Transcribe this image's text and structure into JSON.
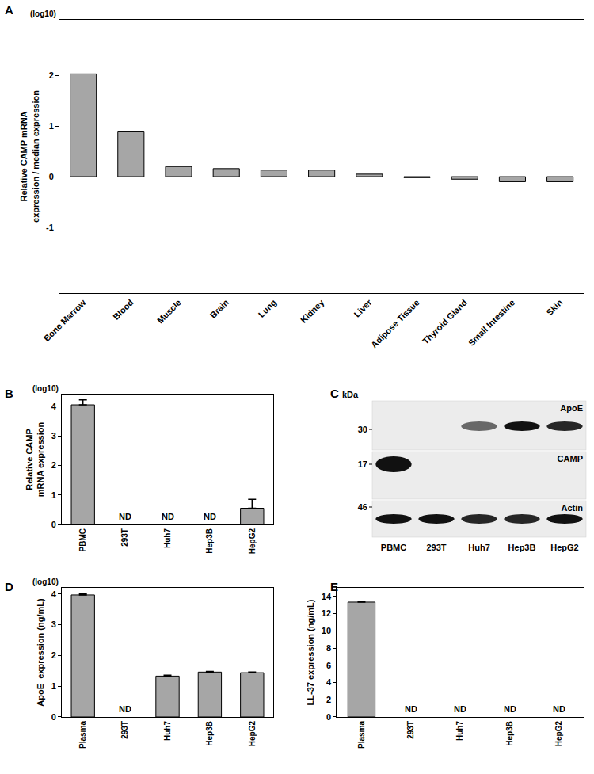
{
  "chart_data": [
    {
      "type": "bar",
      "label": "A",
      "y_label": "Relative CAMP mRNA\nexpression / median expression",
      "y_note": "(log10)",
      "categories": [
        "Bone Marrow",
        "Blood",
        "Muscle",
        "Brain",
        "Lung",
        "Kidney",
        "Liver",
        "Adipose Tissue",
        "Thyroid Gland",
        "Small Intestine",
        "Skin"
      ],
      "values": [
        2.03,
        0.9,
        0.2,
        0.16,
        0.13,
        0.13,
        0.05,
        -0.02,
        -0.05,
        -0.1,
        -0.1
      ],
      "color": "#a6a6a6",
      "ylim": [
        -2.3,
        3.1
      ],
      "yticks": [
        -1,
        0,
        1,
        2
      ],
      "grid": false
    },
    {
      "type": "bar",
      "label": "B",
      "y_label": "Relative CAMP\nmRNA expression",
      "y_note": "(log10)",
      "categories": [
        "PBMC",
        "293T",
        "Huh7",
        "Hep3B",
        "HepG2"
      ],
      "values": [
        4.05,
        null,
        null,
        null,
        0.55
      ],
      "errors": [
        0.17,
        null,
        null,
        null,
        0.3
      ],
      "annotations": [
        {
          "category": "293T",
          "text": "ND"
        },
        {
          "category": "Huh7",
          "text": "ND"
        },
        {
          "category": "Hep3B",
          "text": "ND"
        }
      ],
      "color": "#a6a6a6",
      "ylim": [
        0,
        4.4
      ],
      "yticks": [
        0,
        1,
        2,
        3,
        4
      ],
      "grid": false
    },
    {
      "type": "bar",
      "label": "D",
      "y_label": "ApoE  expression (ng/mL)",
      "y_note": "(log10)",
      "categories": [
        "Plasma",
        "293T",
        "Huh7",
        "Hep3B",
        "HepG2"
      ],
      "values": [
        3.97,
        null,
        1.33,
        1.46,
        1.44
      ],
      "errors": [
        0.04,
        null,
        0.03,
        0.02,
        0.02
      ],
      "annotations": [
        {
          "category": "293T",
          "text": "ND"
        }
      ],
      "color": "#a6a6a6",
      "ylim": [
        0,
        4.2
      ],
      "yticks": [
        0,
        1,
        2,
        3,
        4
      ],
      "grid": false
    },
    {
      "type": "bar",
      "label": "E",
      "y_label": "LL-37 expression (ng/mL)",
      "categories": [
        "Plasma",
        "293T",
        "Huh7",
        "Hep3B",
        "HepG2"
      ],
      "values": [
        13.35,
        null,
        null,
        null,
        null
      ],
      "errors": [
        0.05,
        null,
        null,
        null,
        null
      ],
      "annotations": [
        {
          "category": "293T",
          "text": "ND"
        },
        {
          "category": "Huh7",
          "text": "ND"
        },
        {
          "category": "Hep3B",
          "text": "ND"
        },
        {
          "category": "HepG2",
          "text": "ND"
        }
      ],
      "color": "#a6a6a6",
      "ylim": [
        0,
        15
      ],
      "yticks": [
        0,
        2,
        4,
        6,
        8,
        10,
        12,
        14
      ],
      "grid": false
    }
  ],
  "blot": {
    "label": "C",
    "marker_unit": "kDa",
    "lanes": [
      "PBMC",
      "293T",
      "Huh7",
      "Hep3B",
      "HepG2"
    ],
    "rows": [
      {
        "name": "ApoE",
        "marker": 30,
        "intensity": [
          0,
          0,
          0.6,
          1,
          0.9
        ]
      },
      {
        "name": "CAMP",
        "marker": 17,
        "intensity": [
          1,
          0,
          0,
          0,
          0
        ]
      },
      {
        "name": "Actin",
        "marker": 46,
        "intensity": [
          1,
          1,
          0.9,
          0.9,
          1
        ]
      }
    ]
  }
}
